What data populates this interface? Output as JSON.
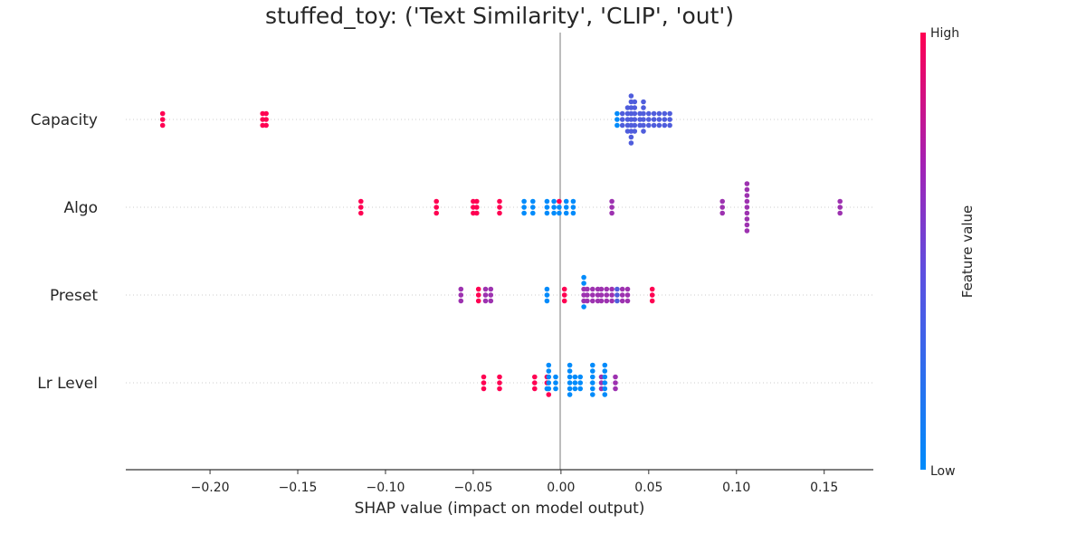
{
  "chart_data": {
    "type": "scatter",
    "subtype": "shap-beeswarm",
    "title": "stuffed_toy: ('Text Similarity', 'CLIP', 'out')",
    "xlabel": "SHAP value (impact on model output)",
    "xlim": [
      -0.248,
      0.178
    ],
    "xticks": [
      -0.2,
      -0.15,
      -0.1,
      -0.05,
      0.0,
      0.05,
      0.1,
      0.15
    ],
    "xtick_labels": [
      "−0.20",
      "−0.15",
      "−0.10",
      "−0.05",
      "0.00",
      "0.05",
      "0.10",
      "0.15"
    ],
    "features": [
      "Capacity",
      "Algo",
      "Preset",
      "Lr Level"
    ],
    "colorbar": {
      "label": "Feature value",
      "high_label": "High",
      "low_label": "Low",
      "low_color": "#008bfb",
      "high_color": "#ff0052"
    },
    "points": {
      "Capacity": [
        {
          "x": -0.227,
          "off": -1,
          "v": 1
        },
        {
          "x": -0.227,
          "off": 0,
          "v": 1
        },
        {
          "x": -0.227,
          "off": 1,
          "v": 1
        },
        {
          "x": -0.17,
          "off": -1,
          "v": 1
        },
        {
          "x": -0.17,
          "off": 0,
          "v": 1
        },
        {
          "x": -0.17,
          "off": 1,
          "v": 1
        },
        {
          "x": -0.168,
          "off": -1,
          "v": 1
        },
        {
          "x": -0.168,
          "off": 0,
          "v": 1
        },
        {
          "x": -0.168,
          "off": 1,
          "v": 1
        },
        {
          "x": 0.032,
          "off": -1,
          "v": 0
        },
        {
          "x": 0.032,
          "off": 0,
          "v": 0
        },
        {
          "x": 0.032,
          "off": 1,
          "v": 0
        },
        {
          "x": 0.035,
          "off": -1,
          "v": 0.3
        },
        {
          "x": 0.035,
          "off": 0,
          "v": 0.3
        },
        {
          "x": 0.035,
          "off": 1,
          "v": 0.3
        },
        {
          "x": 0.038,
          "off": -2,
          "v": 0.3
        },
        {
          "x": 0.038,
          "off": -1,
          "v": 0.3
        },
        {
          "x": 0.038,
          "off": 0,
          "v": 0.3
        },
        {
          "x": 0.038,
          "off": 1,
          "v": 0.3
        },
        {
          "x": 0.038,
          "off": 2,
          "v": 0.3
        },
        {
          "x": 0.04,
          "off": -4,
          "v": 0.3
        },
        {
          "x": 0.04,
          "off": -3,
          "v": 0.3
        },
        {
          "x": 0.04,
          "off": -2,
          "v": 0.3
        },
        {
          "x": 0.04,
          "off": -1,
          "v": 0.3
        },
        {
          "x": 0.04,
          "off": 0,
          "v": 0.3
        },
        {
          "x": 0.04,
          "off": 1,
          "v": 0.3
        },
        {
          "x": 0.04,
          "off": 2,
          "v": 0.3
        },
        {
          "x": 0.04,
          "off": 3,
          "v": 0.3
        },
        {
          "x": 0.04,
          "off": 4,
          "v": 0.3
        },
        {
          "x": 0.042,
          "off": -3,
          "v": 0.3
        },
        {
          "x": 0.042,
          "off": -2,
          "v": 0.3
        },
        {
          "x": 0.042,
          "off": -1,
          "v": 0.3
        },
        {
          "x": 0.042,
          "off": 0,
          "v": 0.3
        },
        {
          "x": 0.042,
          "off": 1,
          "v": 0.3
        },
        {
          "x": 0.042,
          "off": 2,
          "v": 0.3
        },
        {
          "x": 0.045,
          "off": -1,
          "v": 0.3
        },
        {
          "x": 0.045,
          "off": 0,
          "v": 0.3
        },
        {
          "x": 0.045,
          "off": 1,
          "v": 0.3
        },
        {
          "x": 0.047,
          "off": -3,
          "v": 0.3
        },
        {
          "x": 0.047,
          "off": -2,
          "v": 0.3
        },
        {
          "x": 0.047,
          "off": -1,
          "v": 0.3
        },
        {
          "x": 0.047,
          "off": 0,
          "v": 0.3
        },
        {
          "x": 0.047,
          "off": 1,
          "v": 0.3
        },
        {
          "x": 0.047,
          "off": 2,
          "v": 0.3
        },
        {
          "x": 0.05,
          "off": -1,
          "v": 0.3
        },
        {
          "x": 0.05,
          "off": 0,
          "v": 0.3
        },
        {
          "x": 0.05,
          "off": 1,
          "v": 0.3
        },
        {
          "x": 0.053,
          "off": -1,
          "v": 0.3
        },
        {
          "x": 0.053,
          "off": 0,
          "v": 0.3
        },
        {
          "x": 0.053,
          "off": 1,
          "v": 0.3
        },
        {
          "x": 0.056,
          "off": -1,
          "v": 0.3
        },
        {
          "x": 0.056,
          "off": 0,
          "v": 0.3
        },
        {
          "x": 0.056,
          "off": 1,
          "v": 0.3
        },
        {
          "x": 0.059,
          "off": -1,
          "v": 0.3
        },
        {
          "x": 0.059,
          "off": 0,
          "v": 0.3
        },
        {
          "x": 0.059,
          "off": 1,
          "v": 0.3
        },
        {
          "x": 0.062,
          "off": -1,
          "v": 0.3
        },
        {
          "x": 0.062,
          "off": 0,
          "v": 0.3
        },
        {
          "x": 0.062,
          "off": 1,
          "v": 0.3
        }
      ],
      "Algo": [
        {
          "x": -0.114,
          "off": -1,
          "v": 1
        },
        {
          "x": -0.114,
          "off": 0,
          "v": 1
        },
        {
          "x": -0.114,
          "off": 1,
          "v": 1
        },
        {
          "x": -0.071,
          "off": -1,
          "v": 1
        },
        {
          "x": -0.071,
          "off": 0,
          "v": 1
        },
        {
          "x": -0.071,
          "off": 1,
          "v": 1
        },
        {
          "x": -0.05,
          "off": -1,
          "v": 1
        },
        {
          "x": -0.05,
          "off": 0,
          "v": 1
        },
        {
          "x": -0.05,
          "off": 1,
          "v": 1
        },
        {
          "x": -0.048,
          "off": -1,
          "v": 1
        },
        {
          "x": -0.048,
          "off": 0,
          "v": 1
        },
        {
          "x": -0.048,
          "off": 1,
          "v": 1
        },
        {
          "x": -0.035,
          "off": -1,
          "v": 1
        },
        {
          "x": -0.035,
          "off": 0,
          "v": 1
        },
        {
          "x": -0.035,
          "off": 1,
          "v": 1
        },
        {
          "x": -0.021,
          "off": -1,
          "v": 0
        },
        {
          "x": -0.021,
          "off": 0,
          "v": 0
        },
        {
          "x": -0.021,
          "off": 1,
          "v": 0
        },
        {
          "x": -0.016,
          "off": -1,
          "v": 0
        },
        {
          "x": -0.016,
          "off": 0,
          "v": 0
        },
        {
          "x": -0.016,
          "off": 1,
          "v": 0
        },
        {
          "x": -0.008,
          "off": -1,
          "v": 0
        },
        {
          "x": -0.008,
          "off": 0,
          "v": 0
        },
        {
          "x": -0.008,
          "off": 1,
          "v": 0
        },
        {
          "x": -0.004,
          "off": -1,
          "v": 0
        },
        {
          "x": -0.004,
          "off": 0,
          "v": 0
        },
        {
          "x": -0.004,
          "off": 1,
          "v": 0
        },
        {
          "x": -0.001,
          "off": -1,
          "v": 1
        },
        {
          "x": -0.001,
          "off": 0,
          "v": 0
        },
        {
          "x": -0.001,
          "off": 1,
          "v": 0
        },
        {
          "x": 0.003,
          "off": -1,
          "v": 0
        },
        {
          "x": 0.003,
          "off": 0,
          "v": 0
        },
        {
          "x": 0.003,
          "off": 1,
          "v": 0
        },
        {
          "x": 0.007,
          "off": -1,
          "v": 0
        },
        {
          "x": 0.007,
          "off": 0,
          "v": 0
        },
        {
          "x": 0.007,
          "off": 1,
          "v": 0
        },
        {
          "x": 0.029,
          "off": -1,
          "v": 0.6
        },
        {
          "x": 0.029,
          "off": 0,
          "v": 0.6
        },
        {
          "x": 0.029,
          "off": 1,
          "v": 0.6
        },
        {
          "x": 0.092,
          "off": -1,
          "v": 0.6
        },
        {
          "x": 0.092,
          "off": 0,
          "v": 0.6
        },
        {
          "x": 0.092,
          "off": 1,
          "v": 0.6
        },
        {
          "x": 0.106,
          "off": -4,
          "v": 0.6
        },
        {
          "x": 0.106,
          "off": -3,
          "v": 0.6
        },
        {
          "x": 0.106,
          "off": -2,
          "v": 0.6
        },
        {
          "x": 0.106,
          "off": -1,
          "v": 0.6
        },
        {
          "x": 0.106,
          "off": 0,
          "v": 0.6
        },
        {
          "x": 0.106,
          "off": 1,
          "v": 0.6
        },
        {
          "x": 0.106,
          "off": 2,
          "v": 0.6
        },
        {
          "x": 0.106,
          "off": 3,
          "v": 0.6
        },
        {
          "x": 0.106,
          "off": 4,
          "v": 0.6
        },
        {
          "x": 0.159,
          "off": -1,
          "v": 0.6
        },
        {
          "x": 0.159,
          "off": 0,
          "v": 0.6
        },
        {
          "x": 0.159,
          "off": 1,
          "v": 0.6
        }
      ],
      "Preset": [
        {
          "x": -0.057,
          "off": -1,
          "v": 0.6
        },
        {
          "x": -0.057,
          "off": 0,
          "v": 0.6
        },
        {
          "x": -0.057,
          "off": 1,
          "v": 0.6
        },
        {
          "x": -0.047,
          "off": -1,
          "v": 1
        },
        {
          "x": -0.047,
          "off": 0,
          "v": 1
        },
        {
          "x": -0.047,
          "off": 1,
          "v": 1
        },
        {
          "x": -0.043,
          "off": -1,
          "v": 0.6
        },
        {
          "x": -0.043,
          "off": 0,
          "v": 0.6
        },
        {
          "x": -0.043,
          "off": 1,
          "v": 0.6
        },
        {
          "x": -0.04,
          "off": -1,
          "v": 0.6
        },
        {
          "x": -0.04,
          "off": 0,
          "v": 0.6
        },
        {
          "x": -0.04,
          "off": 1,
          "v": 0.6
        },
        {
          "x": -0.008,
          "off": -1,
          "v": 0
        },
        {
          "x": -0.008,
          "off": 0,
          "v": 0
        },
        {
          "x": -0.008,
          "off": 1,
          "v": 0
        },
        {
          "x": 0.002,
          "off": -1,
          "v": 1
        },
        {
          "x": 0.002,
          "off": 0,
          "v": 1
        },
        {
          "x": 0.002,
          "off": 1,
          "v": 1
        },
        {
          "x": 0.013,
          "off": -3,
          "v": 0
        },
        {
          "x": 0.013,
          "off": -2,
          "v": 0
        },
        {
          "x": 0.013,
          "off": -1,
          "v": 0.6
        },
        {
          "x": 0.013,
          "off": 0,
          "v": 0.6
        },
        {
          "x": 0.013,
          "off": 1,
          "v": 0.6
        },
        {
          "x": 0.013,
          "off": 2,
          "v": 0
        },
        {
          "x": 0.015,
          "off": -1,
          "v": 0.6
        },
        {
          "x": 0.015,
          "off": 0,
          "v": 0.6
        },
        {
          "x": 0.015,
          "off": 1,
          "v": 0.6
        },
        {
          "x": 0.018,
          "off": -1,
          "v": 0.6
        },
        {
          "x": 0.018,
          "off": 0,
          "v": 0.6
        },
        {
          "x": 0.018,
          "off": 1,
          "v": 0.6
        },
        {
          "x": 0.021,
          "off": -1,
          "v": 0.6
        },
        {
          "x": 0.021,
          "off": 0,
          "v": 0.6
        },
        {
          "x": 0.021,
          "off": 1,
          "v": 0.6
        },
        {
          "x": 0.023,
          "off": -1,
          "v": 0.6
        },
        {
          "x": 0.023,
          "off": 0,
          "v": 0.6
        },
        {
          "x": 0.023,
          "off": 1,
          "v": 0.6
        },
        {
          "x": 0.026,
          "off": -1,
          "v": 0.6
        },
        {
          "x": 0.026,
          "off": 0,
          "v": 0.6
        },
        {
          "x": 0.026,
          "off": 1,
          "v": 0.6
        },
        {
          "x": 0.029,
          "off": -1,
          "v": 0.6
        },
        {
          "x": 0.029,
          "off": 0,
          "v": 0.6
        },
        {
          "x": 0.029,
          "off": 1,
          "v": 0.6
        },
        {
          "x": 0.032,
          "off": -1,
          "v": 0.3
        },
        {
          "x": 0.032,
          "off": 0,
          "v": 0.3
        },
        {
          "x": 0.032,
          "off": 1,
          "v": 0.3
        },
        {
          "x": 0.035,
          "off": -1,
          "v": 0.6
        },
        {
          "x": 0.035,
          "off": 0,
          "v": 0.6
        },
        {
          "x": 0.035,
          "off": 1,
          "v": 0.6
        },
        {
          "x": 0.038,
          "off": -1,
          "v": 0.6
        },
        {
          "x": 0.038,
          "off": 0,
          "v": 0.6
        },
        {
          "x": 0.038,
          "off": 1,
          "v": 0.6
        },
        {
          "x": 0.052,
          "off": -1,
          "v": 1
        },
        {
          "x": 0.052,
          "off": 0,
          "v": 1
        },
        {
          "x": 0.052,
          "off": 1,
          "v": 1
        }
      ],
      "Lr Level": [
        {
          "x": -0.044,
          "off": -1,
          "v": 1
        },
        {
          "x": -0.044,
          "off": 0,
          "v": 1
        },
        {
          "x": -0.044,
          "off": 1,
          "v": 1
        },
        {
          "x": -0.035,
          "off": -1,
          "v": 1
        },
        {
          "x": -0.035,
          "off": 0,
          "v": 1
        },
        {
          "x": -0.035,
          "off": 1,
          "v": 1
        },
        {
          "x": -0.015,
          "off": -1,
          "v": 1
        },
        {
          "x": -0.015,
          "off": 0,
          "v": 1
        },
        {
          "x": -0.015,
          "off": 1,
          "v": 1
        },
        {
          "x": -0.008,
          "off": -1,
          "v": 1
        },
        {
          "x": -0.008,
          "off": 0,
          "v": 1
        },
        {
          "x": -0.008,
          "off": 1,
          "v": 0
        },
        {
          "x": -0.007,
          "off": -3,
          "v": 0
        },
        {
          "x": -0.007,
          "off": -2,
          "v": 0
        },
        {
          "x": -0.007,
          "off": -1,
          "v": 0
        },
        {
          "x": -0.007,
          "off": 0,
          "v": 0
        },
        {
          "x": -0.007,
          "off": 1,
          "v": 0
        },
        {
          "x": -0.007,
          "off": 2,
          "v": 1
        },
        {
          "x": -0.003,
          "off": -1,
          "v": 0
        },
        {
          "x": -0.003,
          "off": 0,
          "v": 0
        },
        {
          "x": -0.003,
          "off": 1,
          "v": 0
        },
        {
          "x": 0.005,
          "off": -3,
          "v": 0
        },
        {
          "x": 0.005,
          "off": -2,
          "v": 0
        },
        {
          "x": 0.005,
          "off": -1,
          "v": 0
        },
        {
          "x": 0.005,
          "off": 0,
          "v": 0
        },
        {
          "x": 0.005,
          "off": 1,
          "v": 0
        },
        {
          "x": 0.005,
          "off": 2,
          "v": 0
        },
        {
          "x": 0.008,
          "off": -1,
          "v": 0
        },
        {
          "x": 0.008,
          "off": 0,
          "v": 0
        },
        {
          "x": 0.008,
          "off": 1,
          "v": 0
        },
        {
          "x": 0.011,
          "off": -1,
          "v": 0
        },
        {
          "x": 0.011,
          "off": 0,
          "v": 0
        },
        {
          "x": 0.011,
          "off": 1,
          "v": 0
        },
        {
          "x": 0.018,
          "off": -3,
          "v": 0
        },
        {
          "x": 0.018,
          "off": -2,
          "v": 0
        },
        {
          "x": 0.018,
          "off": -1,
          "v": 0
        },
        {
          "x": 0.018,
          "off": 0,
          "v": 0
        },
        {
          "x": 0.018,
          "off": 1,
          "v": 0
        },
        {
          "x": 0.018,
          "off": 2,
          "v": 0
        },
        {
          "x": 0.023,
          "off": -1,
          "v": 0.6
        },
        {
          "x": 0.023,
          "off": 0,
          "v": 0.6
        },
        {
          "x": 0.023,
          "off": 1,
          "v": 0.6
        },
        {
          "x": 0.025,
          "off": -3,
          "v": 0
        },
        {
          "x": 0.025,
          "off": -2,
          "v": 0
        },
        {
          "x": 0.025,
          "off": -1,
          "v": 0
        },
        {
          "x": 0.025,
          "off": 0,
          "v": 0
        },
        {
          "x": 0.025,
          "off": 1,
          "v": 0
        },
        {
          "x": 0.025,
          "off": 2,
          "v": 0
        },
        {
          "x": 0.031,
          "off": -1,
          "v": 0.6
        },
        {
          "x": 0.031,
          "off": 0,
          "v": 0.6
        },
        {
          "x": 0.031,
          "off": 1,
          "v": 0.6
        }
      ]
    }
  }
}
